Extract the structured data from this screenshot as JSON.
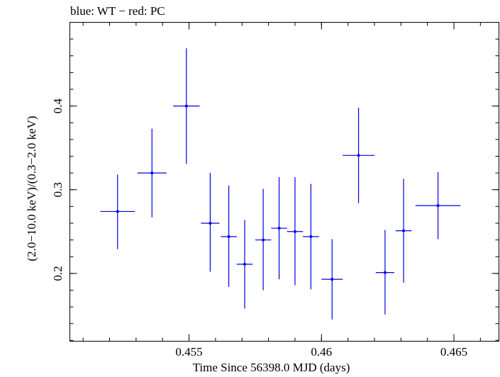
{
  "chart_data": {
    "type": "scatter",
    "title": "blue: WT − red: PC",
    "xlabel": "Time Since 56398.0 MJD (days)",
    "ylabel": "(2.0−10.0 keV)/(0.3−2.0 keV)",
    "xlim": [
      0.4505,
      0.4667
    ],
    "ylim": [
      0.119,
      0.5
    ],
    "xticks": [
      0.455,
      0.46,
      0.465
    ],
    "xtick_labels": [
      "0.455",
      "0.46",
      "0.465"
    ],
    "yticks": [
      0.2,
      0.3,
      0.4
    ],
    "ytick_labels": [
      "0.2",
      "0.3",
      "0.4"
    ],
    "color": "#0000e6",
    "series": [
      {
        "name": "WT",
        "points": [
          {
            "x": 0.4523,
            "y": 0.274,
            "xerr": 0.00065,
            "ylo": 0.229,
            "yhi": 0.318
          },
          {
            "x": 0.4536,
            "y": 0.32,
            "xerr": 0.00055,
            "ylo": 0.267,
            "yhi": 0.373
          },
          {
            "x": 0.4549,
            "y": 0.4,
            "xerr": 0.0005,
            "ylo": 0.331,
            "yhi": 0.469
          },
          {
            "x": 0.4558,
            "y": 0.26,
            "xerr": 0.00035,
            "ylo": 0.202,
            "yhi": 0.32
          },
          {
            "x": 0.4565,
            "y": 0.244,
            "xerr": 0.0003,
            "ylo": 0.184,
            "yhi": 0.305
          },
          {
            "x": 0.4571,
            "y": 0.211,
            "xerr": 0.0003,
            "ylo": 0.158,
            "yhi": 0.264
          },
          {
            "x": 0.4578,
            "y": 0.24,
            "xerr": 0.0003,
            "ylo": 0.18,
            "yhi": 0.301
          },
          {
            "x": 0.4584,
            "y": 0.254,
            "xerr": 0.0003,
            "ylo": 0.193,
            "yhi": 0.315
          },
          {
            "x": 0.459,
            "y": 0.25,
            "xerr": 0.0003,
            "ylo": 0.186,
            "yhi": 0.315
          },
          {
            "x": 0.4596,
            "y": 0.244,
            "xerr": 0.0003,
            "ylo": 0.181,
            "yhi": 0.307
          },
          {
            "x": 0.4604,
            "y": 0.193,
            "xerr": 0.0004,
            "ylo": 0.145,
            "yhi": 0.241
          },
          {
            "x": 0.4614,
            "y": 0.341,
            "xerr": 0.0006,
            "ylo": 0.284,
            "yhi": 0.398
          },
          {
            "x": 0.4624,
            "y": 0.201,
            "xerr": 0.00035,
            "ylo": 0.151,
            "yhi": 0.252
          },
          {
            "x": 0.4631,
            "y": 0.251,
            "xerr": 0.0003,
            "ylo": 0.189,
            "yhi": 0.313
          },
          {
            "x": 0.4644,
            "y": 0.281,
            "xerr": 0.00085,
            "ylo": 0.241,
            "yhi": 0.321
          }
        ]
      }
    ]
  }
}
